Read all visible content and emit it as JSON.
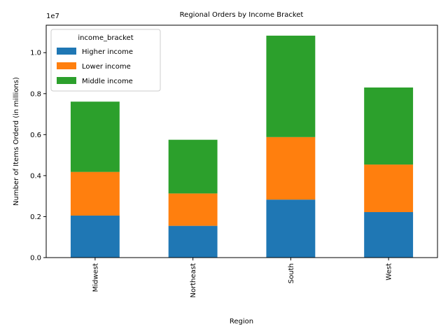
{
  "chart_data": {
    "type": "bar",
    "stacked": true,
    "title": "Regional Orders by Income Bracket",
    "xlabel": "Region",
    "ylabel": "Number of Items Orderd (in millions)",
    "y_offset_label": "1e7",
    "categories": [
      "Midwest",
      "Northeast",
      "South",
      "West"
    ],
    "series": [
      {
        "name": "Higher income",
        "color": "#1f77b4",
        "values": [
          2050000,
          1550000,
          2830000,
          2220000
        ]
      },
      {
        "name": "Lower income",
        "color": "#ff7f0e",
        "values": [
          2130000,
          1580000,
          3050000,
          2320000
        ]
      },
      {
        "name": "Middle income",
        "color": "#2ca02c",
        "values": [
          3430000,
          2620000,
          4950000,
          3760000
        ]
      }
    ],
    "ylim": [
      0,
      11340000
    ],
    "yticks": [
      0,
      2000000,
      4000000,
      6000000,
      8000000,
      10000000
    ],
    "ytick_labels": [
      "0.0",
      "0.2",
      "0.4",
      "0.6",
      "0.8",
      "1.0"
    ],
    "legend": {
      "title": "income_bracket",
      "placement": "top-left"
    },
    "grid": false
  }
}
